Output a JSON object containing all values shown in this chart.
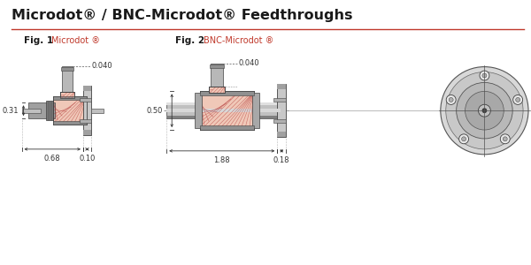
{
  "title": "Microdot® / BNC-Microdot® Feedthroughs",
  "title_color": "#1a1a1a",
  "title_fontsize": 11.5,
  "separator_color": "#c0392b",
  "bg_color": "#ffffff",
  "fig1_label": "Fig. 1",
  "fig1_sublabel": "Microdot ®",
  "fig2_label": "Fig. 2",
  "fig2_sublabel": "BNC-Microdot ®",
  "label_color": "#1a1a1a",
  "sublabel_color": "#c0392b",
  "dim_color": "#333333",
  "gray_light": "#e0e0e0",
  "gray_mid": "#b8b8b8",
  "gray_dark": "#808080",
  "gray_darker": "#505050",
  "pink_fill": "#f0c8b8",
  "hatch_color": "#b03030",
  "dim_font": 6.0,
  "label_font_bold": 7.5,
  "label_font": 7.0,
  "dims": {
    "d_031": "0.31",
    "d_040": "0.040",
    "d_068": "0.68",
    "d_010": "0.10",
    "d_050": "0.50",
    "d_188": "1.88",
    "d_018": "0.18"
  }
}
